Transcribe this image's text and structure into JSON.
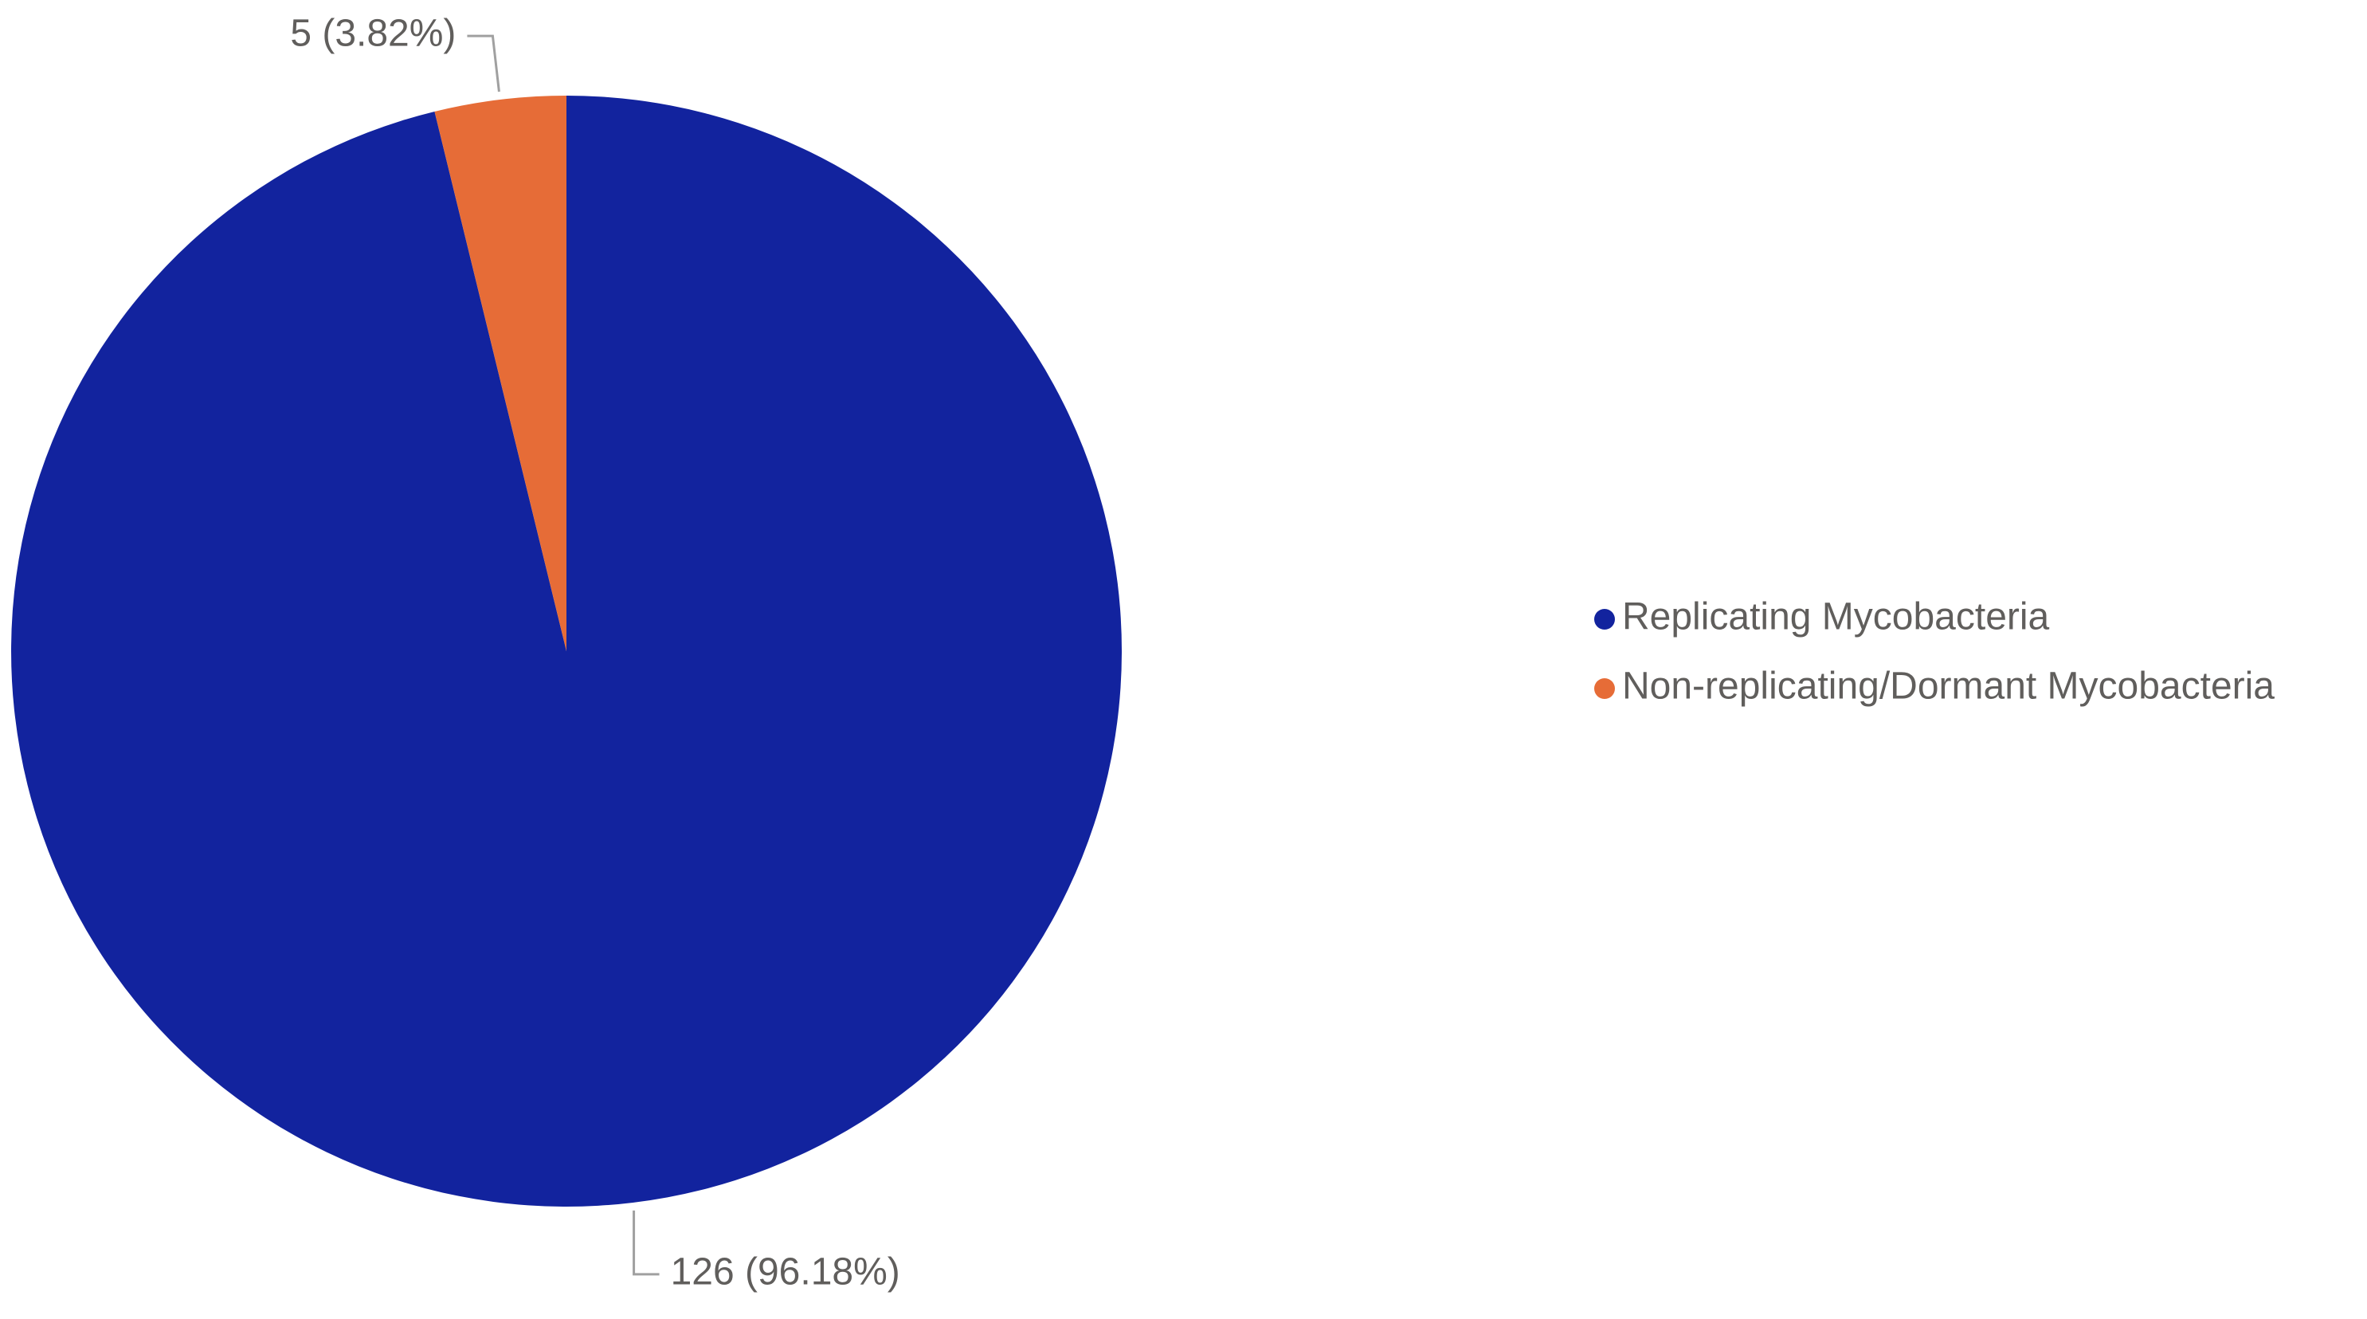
{
  "chart_data": {
    "type": "pie",
    "categories": [
      "Replicating Mycobacteria",
      "Non-replicating/Dormant Mycobacteria"
    ],
    "values": [
      126,
      5
    ],
    "value_labels": [
      "126 (96.18%)",
      "5 (3.82%)"
    ],
    "colors": [
      "#12239e",
      "#e66c37"
    ],
    "legend": "right"
  }
}
